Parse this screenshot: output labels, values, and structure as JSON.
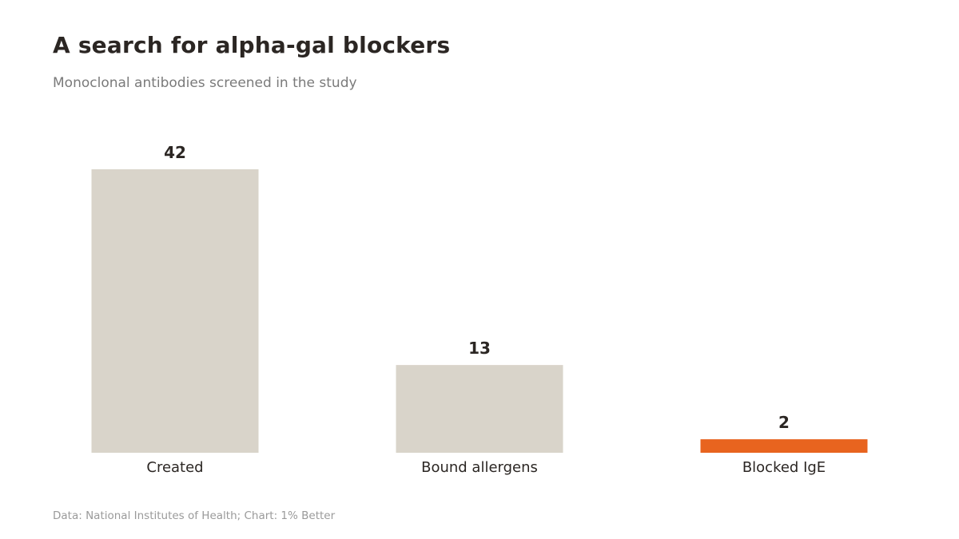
{
  "header": {
    "title": "A search for alpha-gal blockers",
    "subtitle": "Monoclonal antibodies screened in the study"
  },
  "footer": {
    "source": "Data: National Institutes of Health; Chart: 1% Better"
  },
  "colors": {
    "bar_default": "#d9d4ca",
    "bar_highlight": "#e8641f"
  },
  "chart_data": {
    "type": "bar",
    "title": "A search for alpha-gal blockers",
    "subtitle": "Monoclonal antibodies screened in the study",
    "categories": [
      "Created",
      "Bound allergens",
      "Blocked IgE"
    ],
    "values": [
      42,
      13,
      2
    ],
    "highlight": [
      "Blocked IgE"
    ],
    "xlabel": "",
    "ylabel": "",
    "ylim": [
      0,
      42
    ],
    "grid": false,
    "data_labels": true
  }
}
